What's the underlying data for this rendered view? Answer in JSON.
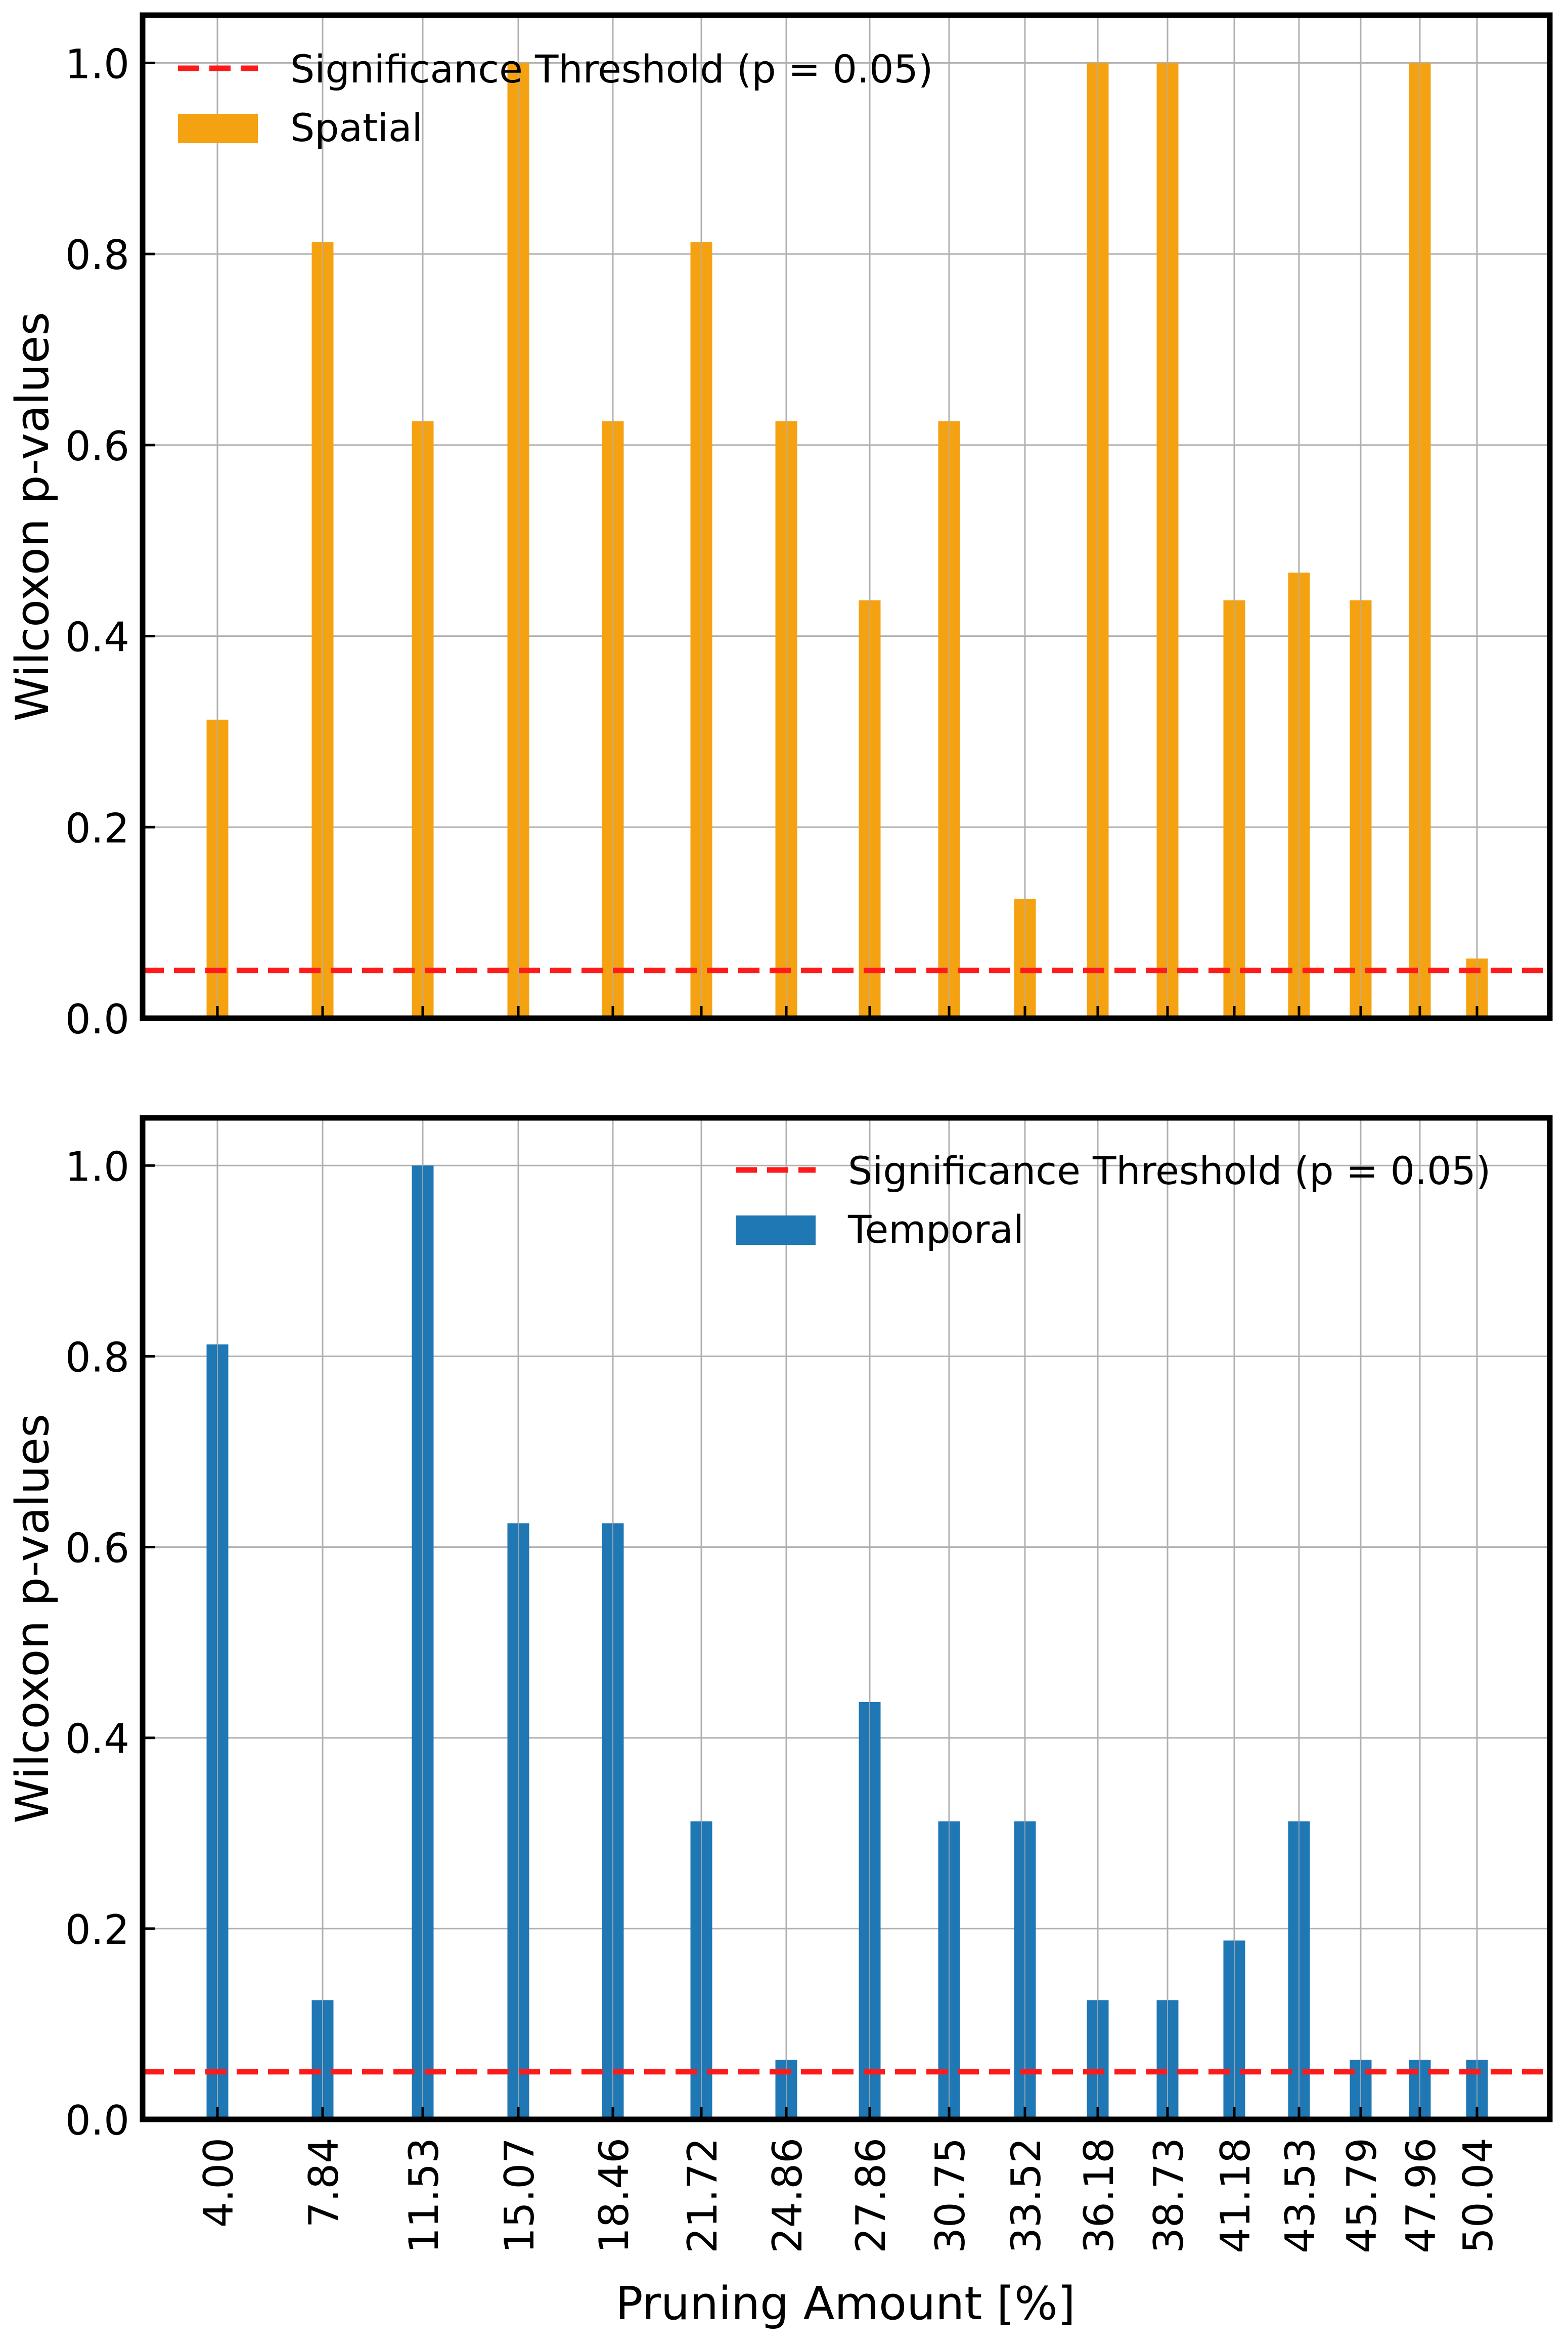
{
  "xlabel": "Pruning Amount [%]",
  "categories": [
    "4.00",
    "7.84",
    "11.53",
    "15.07",
    "18.46",
    "21.72",
    "24.86",
    "27.86",
    "30.75",
    "33.52",
    "36.18",
    "38.73",
    "41.18",
    "43.53",
    "45.79",
    "47.96",
    "50.04"
  ],
  "chart_data": [
    {
      "type": "bar",
      "ylabel": "Wilcoxon p-values",
      "ylim": [
        0,
        1.05
      ],
      "yticks": [
        "0.0",
        "0.2",
        "0.4",
        "0.6",
        "0.8",
        "1.0"
      ],
      "grid": true,
      "legend_position": "top-left",
      "categories": [
        "4.00",
        "7.84",
        "11.53",
        "15.07",
        "18.46",
        "21.72",
        "24.86",
        "27.86",
        "30.75",
        "33.52",
        "36.18",
        "38.73",
        "41.18",
        "43.53",
        "45.79",
        "47.96",
        "50.04"
      ],
      "series": [
        {
          "name": "Spatial",
          "color": "#f5a212",
          "values": [
            0.3125,
            0.8125,
            0.625,
            1.0,
            0.625,
            0.8125,
            0.625,
            0.4375,
            0.625,
            0.125,
            1.0,
            1.0,
            0.4375,
            0.4665,
            0.4375,
            1.0,
            0.0625
          ]
        }
      ],
      "threshold": {
        "name": "Significance Threshold (p = 0.05)",
        "value": 0.05,
        "color": "#ff1a1a"
      }
    },
    {
      "type": "bar",
      "xlabel": "Pruning Amount [%]",
      "ylabel": "Wilcoxon p-values",
      "ylim": [
        0,
        1.05
      ],
      "yticks": [
        "0.0",
        "0.2",
        "0.4",
        "0.6",
        "0.8",
        "1.0"
      ],
      "grid": true,
      "legend_position": "top-right",
      "categories": [
        "4.00",
        "7.84",
        "11.53",
        "15.07",
        "18.46",
        "21.72",
        "24.86",
        "27.86",
        "30.75",
        "33.52",
        "36.18",
        "38.73",
        "41.18",
        "43.53",
        "45.79",
        "47.96",
        "50.04"
      ],
      "series": [
        {
          "name": "Temporal",
          "color": "#1f77b4",
          "values": [
            0.8125,
            0.125,
            1.0,
            0.625,
            0.625,
            0.3125,
            0.0625,
            0.4375,
            0.3125,
            0.3125,
            0.125,
            0.125,
            0.1875,
            0.3125,
            0.0625,
            0.0625,
            0.0625
          ]
        }
      ],
      "threshold": {
        "name": "Significance Threshold (p = 0.05)",
        "value": 0.05,
        "color": "#ff1a1a"
      }
    }
  ]
}
